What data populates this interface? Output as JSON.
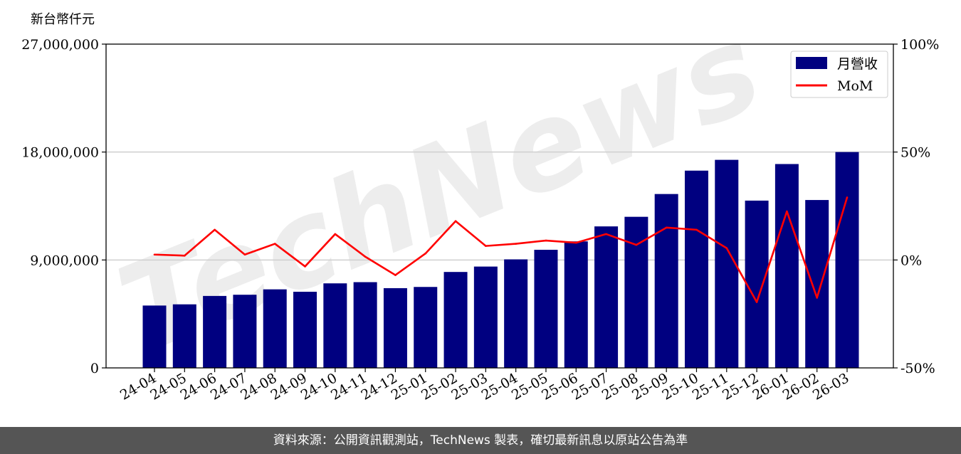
{
  "watermark": "TechNews",
  "footer": {
    "source_text": "資料來源：公開資訊觀測站，TechNews 製表，確切最新訊息以原站公告為準"
  },
  "chart_data": {
    "type": "bar",
    "ylabel": "新台幣仟元",
    "categories": [
      "24-04",
      "24-05",
      "24-06",
      "24-07",
      "24-08",
      "24-09",
      "24-10",
      "24-11",
      "24-12",
      "25-01",
      "25-02",
      "25-03",
      "25-04",
      "25-05",
      "25-06",
      "25-07",
      "25-08",
      "25-09",
      "25-10",
      "25-11",
      "25-12",
      "26-01",
      "26-02",
      "26-03"
    ],
    "ylim": [
      0,
      27000000
    ],
    "y_ticks": [
      "0",
      "9,000,000",
      "18,000,000",
      "27,000,000"
    ],
    "y2lim": [
      -50,
      100
    ],
    "y2_ticks": [
      "-50%",
      "0%",
      "50%",
      "100%"
    ],
    "grid": "horizontal",
    "legend_position": "top-right",
    "series": [
      {
        "name": "月營收",
        "type": "bar",
        "color": "#000080",
        "values": [
          5200000,
          5300000,
          6000000,
          6100000,
          6550000,
          6350000,
          7050000,
          7150000,
          6650000,
          6750000,
          8000000,
          8450000,
          9050000,
          9850000,
          10550000,
          11800000,
          12600000,
          14500000,
          16450000,
          17350000,
          13950000,
          17000000,
          14000000,
          18000000
        ]
      },
      {
        "name": "MoM",
        "type": "line",
        "color": "#ff0000",
        "values": [
          2.5,
          2,
          14,
          2.5,
          7.5,
          -3,
          12,
          1.5,
          -7,
          3,
          18,
          6.5,
          7.5,
          9,
          8,
          12,
          7,
          15,
          14,
          5.5,
          -19.5,
          22.5,
          -17.5,
          29
        ]
      }
    ]
  }
}
